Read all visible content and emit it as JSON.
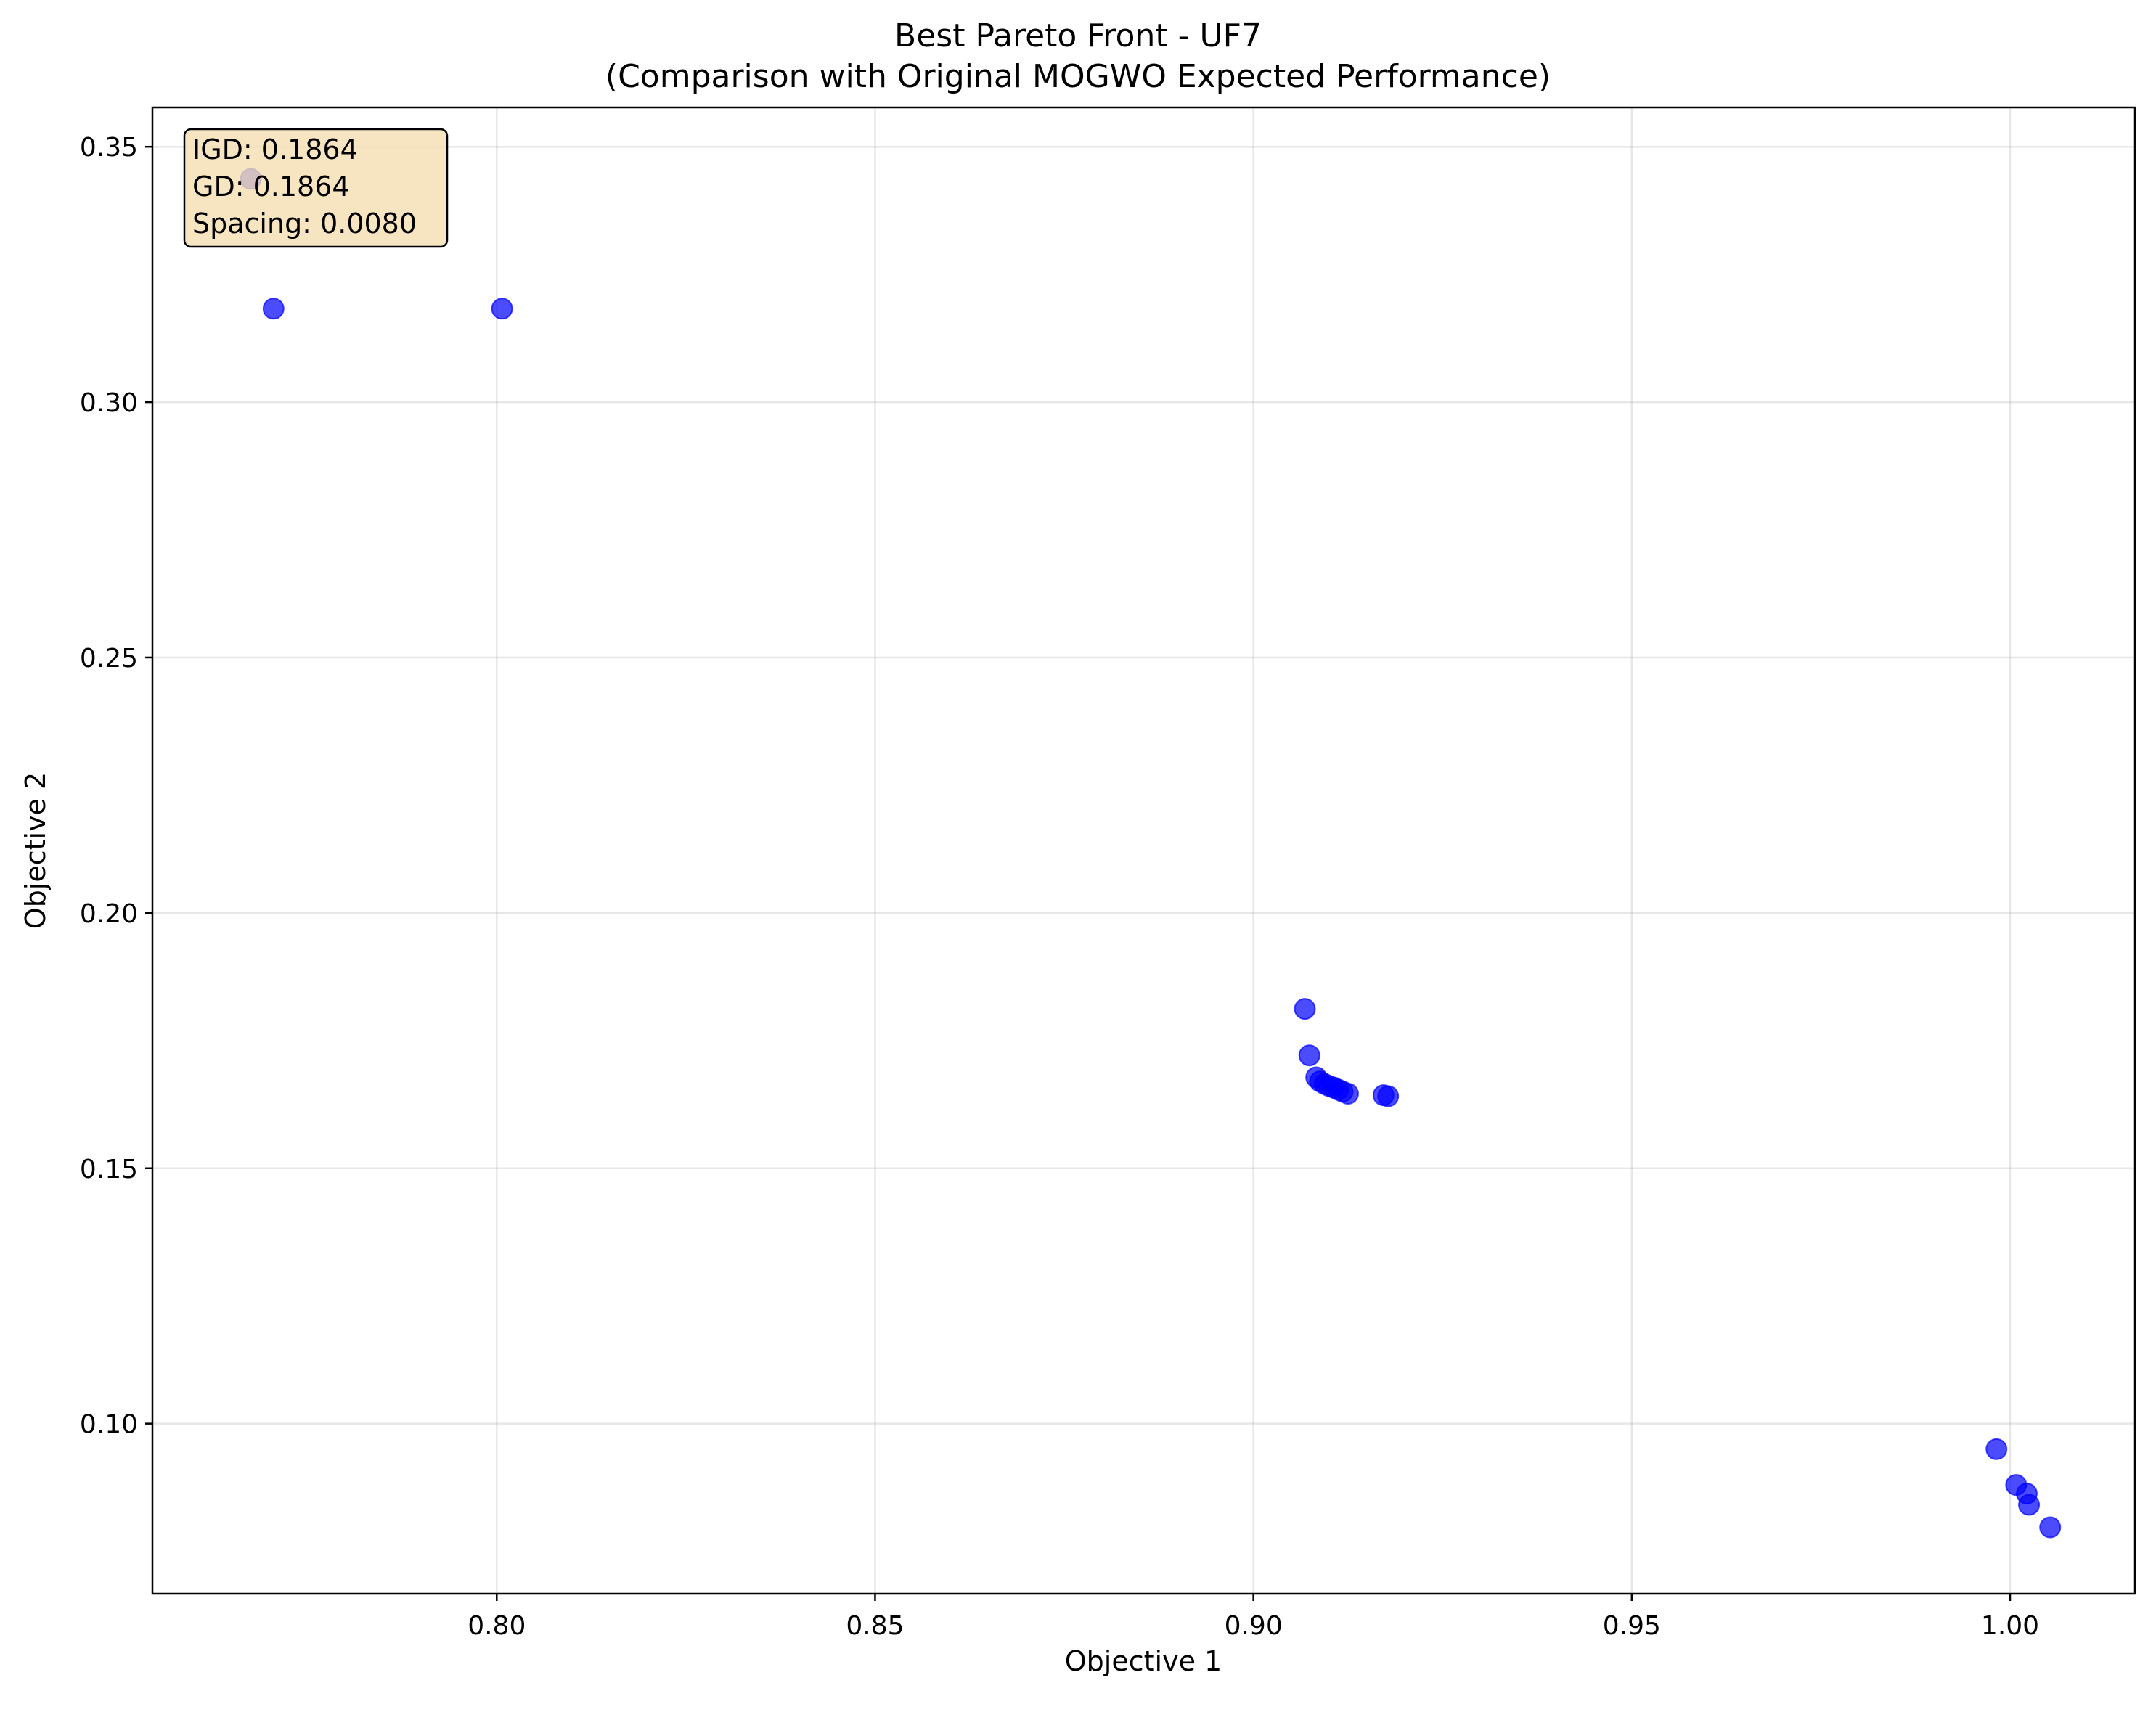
{
  "chart_data": {
    "type": "scatter",
    "title": "Best Pareto Front - UF7",
    "subtitle": "(Comparison with Original MOGWO Expected Performance)",
    "xlabel": "Objective 1",
    "ylabel": "Objective 2",
    "xlim": [
      0.7545,
      1.0165
    ],
    "ylim": [
      0.0667,
      0.3577
    ],
    "xticks": [
      0.8,
      0.85,
      0.9,
      0.95,
      1.0
    ],
    "xtick_labels": [
      "0.80",
      "0.85",
      "0.90",
      "0.95",
      "1.00"
    ],
    "yticks": [
      0.1,
      0.15,
      0.2,
      0.25,
      0.3,
      0.35
    ],
    "ytick_labels": [
      "0.10",
      "0.15",
      "0.20",
      "0.25",
      "0.30",
      "0.35"
    ],
    "grid": true,
    "marker_color": "#0000ff",
    "marker_alpha": 0.7,
    "series": [
      {
        "points": [
          [
            0.7675,
            0.3437
          ],
          [
            0.7705,
            0.3183
          ],
          [
            0.8007,
            0.3183
          ],
          [
            0.9068,
            0.1812
          ],
          [
            0.9074,
            0.1721
          ],
          [
            0.9083,
            0.1678
          ],
          [
            0.9088,
            0.167
          ],
          [
            0.9094,
            0.1665
          ],
          [
            0.91,
            0.1661
          ],
          [
            0.9106,
            0.1658
          ],
          [
            0.9112,
            0.1654
          ],
          [
            0.9118,
            0.165
          ],
          [
            0.9125,
            0.1646
          ],
          [
            0.9172,
            0.1643
          ],
          [
            0.9178,
            0.1641
          ],
          [
            0.9982,
            0.095
          ],
          [
            1.0008,
            0.088
          ],
          [
            1.0022,
            0.0863
          ],
          [
            1.0025,
            0.0841
          ],
          [
            1.0053,
            0.0797
          ]
        ]
      }
    ],
    "annotation": {
      "lines": [
        "IGD: 0.1864",
        "GD: 0.1864",
        "Spacing: 0.0080"
      ],
      "placement": "top-left",
      "background": "#f5deb3",
      "border": "#000000"
    }
  }
}
